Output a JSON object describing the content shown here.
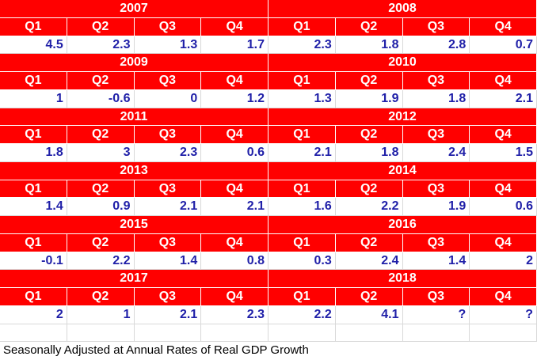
{
  "blocks": [
    {
      "year": "2007",
      "quarters": [
        "Q1",
        "Q2",
        "Q3",
        "Q4"
      ],
      "values": [
        4.5,
        2.3,
        1.3,
        1.7
      ]
    },
    {
      "year": "2008",
      "quarters": [
        "Q1",
        "Q2",
        "Q3",
        "Q4"
      ],
      "values": [
        2.3,
        1.8,
        2.8,
        0.7
      ]
    },
    {
      "year": "2009",
      "quarters": [
        "Q1",
        "Q2",
        "Q3",
        "Q4"
      ],
      "values": [
        1,
        -0.6,
        0,
        1.2
      ]
    },
    {
      "year": "2010",
      "quarters": [
        "Q1",
        "Q2",
        "Q3",
        "Q4"
      ],
      "values": [
        1.3,
        1.9,
        1.8,
        2.1
      ]
    },
    {
      "year": "2011",
      "quarters": [
        "Q1",
        "Q2",
        "Q3",
        "Q4"
      ],
      "values": [
        1.8,
        3,
        2.3,
        0.6
      ]
    },
    {
      "year": "2012",
      "quarters": [
        "Q1",
        "Q2",
        "Q3",
        "Q4"
      ],
      "values": [
        2.1,
        1.8,
        2.4,
        1.5
      ]
    },
    {
      "year": "2013",
      "quarters": [
        "Q1",
        "Q2",
        "Q3",
        "Q4"
      ],
      "values": [
        1.4,
        0.9,
        2.1,
        2.1
      ]
    },
    {
      "year": "2014",
      "quarters": [
        "Q1",
        "Q2",
        "Q3",
        "Q4"
      ],
      "values": [
        1.6,
        2.2,
        1.9,
        0.6
      ]
    },
    {
      "year": "2015",
      "quarters": [
        "Q1",
        "Q2",
        "Q3",
        "Q4"
      ],
      "values": [
        -0.1,
        2.2,
        1.4,
        0.8
      ]
    },
    {
      "year": "2016",
      "quarters": [
        "Q1",
        "Q2",
        "Q3",
        "Q4"
      ],
      "values": [
        0.3,
        2.4,
        1.4,
        2
      ]
    },
    {
      "year": "2017",
      "quarters": [
        "Q1",
        "Q2",
        "Q3",
        "Q4"
      ],
      "values": [
        2,
        1,
        2.1,
        2.3
      ]
    },
    {
      "year": "2018",
      "quarters": [
        "Q1",
        "Q2",
        "Q3",
        "Q4"
      ],
      "values": [
        2.2,
        4.1,
        "?",
        "?"
      ]
    }
  ],
  "footer": "Seasonally Adjusted at Annual Rates of Real GDP Growth"
}
